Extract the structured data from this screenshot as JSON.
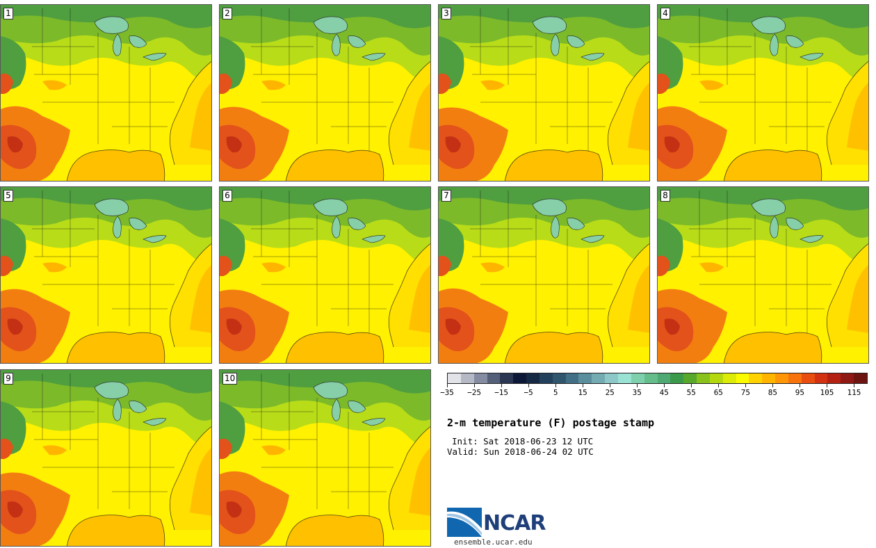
{
  "figure": {
    "title": "2-m temperature (F) postage stamp",
    "init": "Init: Sat 2018-06-23 12 UTC",
    "valid": "Valid: Sun 2018-06-24 02 UTC",
    "logo_text": "NCAR",
    "logo_url": "ensemble.ucar.edu"
  },
  "members": [
    {
      "label": "1"
    },
    {
      "label": "2"
    },
    {
      "label": "3"
    },
    {
      "label": "4"
    },
    {
      "label": "5"
    },
    {
      "label": "6"
    },
    {
      "label": "7"
    },
    {
      "label": "8"
    },
    {
      "label": "9"
    },
    {
      "label": "10"
    }
  ],
  "colorbar": {
    "min": -35,
    "max": 120,
    "interval": 5,
    "tick_labels": [
      "−35",
      "−25",
      "−15",
      "−5",
      "5",
      "15",
      "25",
      "35",
      "45",
      "55",
      "65",
      "75",
      "85",
      "95",
      "105",
      "115"
    ],
    "tick_values": [
      -35,
      -25,
      -15,
      -5,
      5,
      15,
      25,
      35,
      45,
      55,
      65,
      75,
      85,
      95,
      105,
      115
    ],
    "colors": [
      "#e1e3e8",
      "#b5b9c6",
      "#858ba0",
      "#54607a",
      "#2b3652",
      "#0d1838",
      "#152844",
      "#23405c",
      "#30566e",
      "#417086",
      "#5b8e9c",
      "#74aab2",
      "#8cc8c8",
      "#9ae2d4",
      "#7ed0ac",
      "#66bd8c",
      "#4eaa72",
      "#3a9a4a",
      "#58a82c",
      "#88c21a",
      "#b4d80e",
      "#dcec06",
      "#fbfb00",
      "#ffd200",
      "#ffb400",
      "#ff9608",
      "#f8720e",
      "#e94e10",
      "#d23212",
      "#b42012",
      "#901814",
      "#6e1410"
    ]
  },
  "colors": {
    "background": "#ffffff",
    "ocean": "#ffe000",
    "gulf": "#ffc000",
    "hot": "#f37e10",
    "north": "#7cba2a",
    "lakes": "#86cfa8"
  }
}
